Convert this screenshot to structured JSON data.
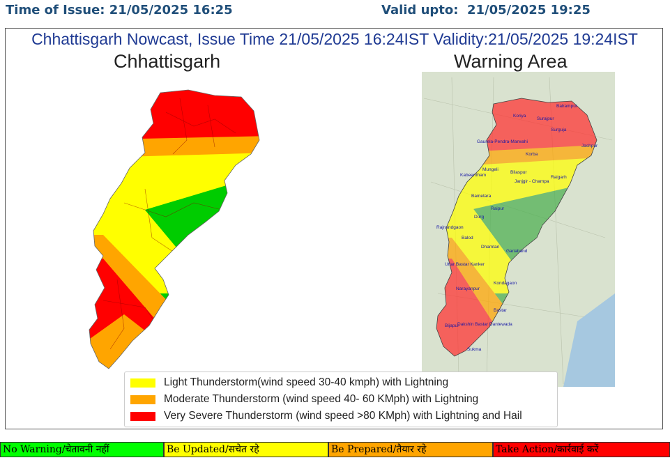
{
  "header": {
    "issue_label": "Time of Issue:",
    "issue_time": "21/05/2025 16:25",
    "valid_label": "Valid upto:",
    "valid_time": "21/05/2025 19:25"
  },
  "panel": {
    "title": "Chhattisgarh Nowcast, Issue Time 21/05/2025 16:24IST  Validity:21/05/2025 19:24IST",
    "left_map_title": "Chhattisgarh",
    "right_map_title": "Warning Area"
  },
  "legend": [
    {
      "label": "Light Thunderstorm(wind speed 30-40 kmph) with Lightning",
      "color": "#ffff00"
    },
    {
      "label": "Moderate Thunderstorm (wind speed 40- 60 KMph) with Lightning",
      "color": "#ffa500"
    },
    {
      "label": "Very Severe Thunderstorm (wind speed >80 KMph) with Lightning and Hail",
      "color": "#ff0000"
    }
  ],
  "warning_map_labels": [
    "Balrampur",
    "Koriya",
    "Surajpur",
    "Surguja",
    "Jashpur",
    "Gaurela-Pendra-Marwahi",
    "Korba",
    "Mungeli",
    "Bilaspur",
    "Kabeerdham",
    "Janjgir - Champa",
    "Raigarh",
    "Bametara",
    "Raipur",
    "Durg",
    "Rajnandgaon",
    "Balod",
    "Dhamtari",
    "Gariaband",
    "Uttar Bastar Kanker",
    "Kondagaon",
    "Narayanpur",
    "Bastar",
    "Bijapur",
    "Dakshin Bastar Dantewada",
    "Sukma"
  ],
  "categories": [
    {
      "label": "No Warning/चेतावनी नहीं",
      "color": "#00ff00"
    },
    {
      "label": "Be Updated/सचेत रहे",
      "color": "#ffff00"
    },
    {
      "label": "Be Prepared/तैयार रहे",
      "color": "#ffa500"
    },
    {
      "label": "Take Action/कार्रवाई करें",
      "color": "#ff0000"
    }
  ]
}
